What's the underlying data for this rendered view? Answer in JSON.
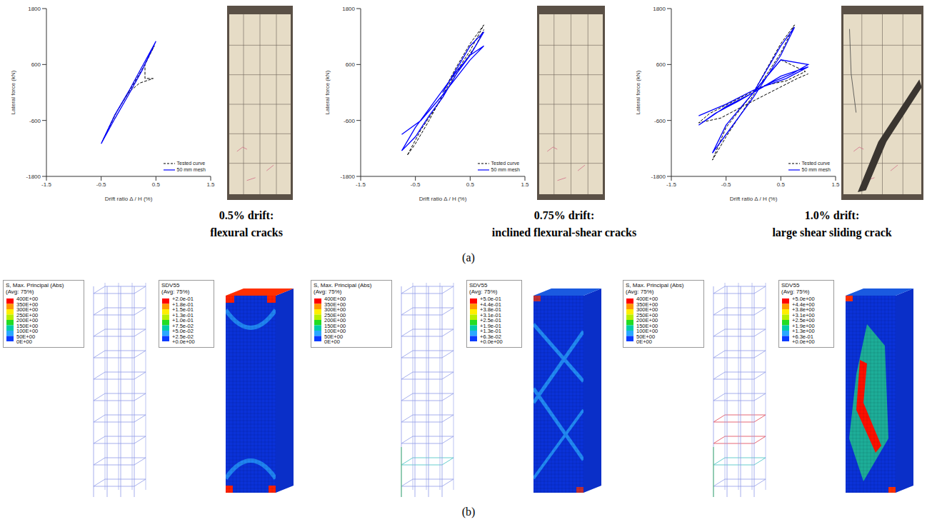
{
  "chart_data": [
    {
      "type": "line",
      "x_label": "Drift ratio Δ / H (%)",
      "y_label": "Lateral force (kN)",
      "xlim": [
        -1.5,
        1.5
      ],
      "xticks": [
        -1.5,
        -0.5,
        0.5,
        1.5
      ],
      "ylim": [
        -1800,
        1800
      ],
      "yticks": [
        -1800,
        -600,
        600,
        1800
      ],
      "legend": "lower right",
      "series": [
        {
          "name": "Tested curve",
          "color": "#000000",
          "line_style": "dashed",
          "x": [
            0,
            0.25,
            0.47,
            0.3,
            0.3,
            0.45,
            0.2,
            0,
            -0.25,
            -0.48,
            -0.2,
            0
          ],
          "values": [
            0,
            500,
            1000,
            600,
            300,
            300,
            200,
            0,
            -480,
            -1050,
            -380,
            0
          ]
        },
        {
          "name": "50 mm mesh",
          "color": "#0000ff",
          "line_style": "solid",
          "x": [
            0,
            0.25,
            0.5,
            0.25,
            0,
            -0.25,
            -0.5,
            -0.25,
            0
          ],
          "values": [
            20,
            560,
            1100,
            480,
            -50,
            -560,
            -1100,
            -480,
            20
          ]
        }
      ]
    },
    {
      "type": "line",
      "x_label": "Drift ratio Δ / H (%)",
      "y_label": "Lateral force (kN)",
      "xlim": [
        -1.5,
        1.5
      ],
      "xticks": [
        -1.5,
        -0.5,
        0.5,
        1.5
      ],
      "ylim": [
        -1800,
        1800
      ],
      "yticks": [
        -1800,
        -600,
        600,
        1800
      ],
      "legend": "lower right",
      "series": [
        {
          "name": "Tested curve",
          "color": "#000000",
          "line_style": "dashed",
          "x": [
            0,
            0.25,
            0.5,
            0.75,
            0.5,
            0.25,
            0,
            -0.25,
            -0.5,
            -0.65,
            -0.4,
            0,
            0.3,
            0.6,
            0.75
          ],
          "values": [
            0,
            550,
            1050,
            1450,
            900,
            450,
            -50,
            -600,
            -1100,
            -1350,
            -800,
            -100,
            500,
            1000,
            1350
          ]
        },
        {
          "name": "50 mm mesh",
          "color": "#0000ff",
          "line_style": "solid",
          "x": [
            0,
            0.25,
            0.5,
            0.75,
            0.5,
            0.25,
            0,
            -0.25,
            -0.5,
            -0.75,
            -0.5,
            -0.25,
            0,
            0.25,
            0.5,
            0.75,
            0.5,
            0,
            -0.4,
            -0.75
          ],
          "values": [
            0,
            500,
            1000,
            1300,
            800,
            400,
            -100,
            -500,
            -950,
            -1250,
            -750,
            -350,
            50,
            450,
            800,
            1000,
            700,
            -50,
            -600,
            -900
          ]
        }
      ]
    },
    {
      "type": "line",
      "x_label": "Drift ratio Δ / H (%)",
      "y_label": "Lateral force (kN)",
      "xlim": [
        -1.5,
        1.5
      ],
      "xticks": [
        -1.5,
        -0.5,
        0.5,
        1.5
      ],
      "ylim": [
        -1800,
        1800
      ],
      "yticks": [
        -1800,
        -600,
        600,
        1800
      ],
      "legend": "lower right",
      "series": [
        {
          "name": "Tested curve",
          "color": "#000000",
          "line_style": "dashed",
          "x": [
            0,
            0.5,
            0.75,
            0.5,
            0,
            -0.5,
            -0.75,
            -0.5,
            0,
            0.5,
            0.95,
            0.6,
            0.2,
            -0.3,
            -0.8,
            -1.0,
            -0.6,
            -0.2,
            0.3,
            0.8,
            1.0
          ],
          "values": [
            0,
            1050,
            1450,
            850,
            -50,
            -950,
            -1450,
            -750,
            0,
            700,
            450,
            250,
            150,
            -150,
            -450,
            -650,
            -550,
            -300,
            0,
            300,
            400
          ]
        },
        {
          "name": "50 mm mesh",
          "color": "#0000ff",
          "line_style": "solid",
          "x": [
            0,
            0.5,
            0.75,
            0.5,
            0,
            -0.5,
            -0.75,
            -0.5,
            0,
            0.5,
            1.0,
            0.7,
            0.3,
            0,
            -0.5,
            -1.0,
            -0.7,
            -0.3,
            0,
            0.5,
            1.0,
            0.6,
            0,
            -0.5,
            -1.0
          ],
          "values": [
            0,
            1000,
            1400,
            800,
            -100,
            -900,
            -1300,
            -700,
            0,
            700,
            600,
            400,
            200,
            0,
            -300,
            -700,
            -450,
            -200,
            0,
            350,
            550,
            300,
            50,
            -250,
            -500
          ]
        }
      ]
    }
  ],
  "captions": [
    {
      "drift": "0.5% drift:",
      "description": "flexural cracks"
    },
    {
      "drift": "0.75% drift:",
      "description": "inclined flexural-shear cracks"
    },
    {
      "drift": "1.0% drift:",
      "description": "large shear sliding crack"
    }
  ],
  "panel_labels": [
    "(a)",
    "(b)"
  ],
  "fe_panels": [
    {
      "s_legend": {
        "title": "S, Max. Principal (Abs)",
        "subtitle": "(Avg: 75%)",
        "labels": [
          "400E+00",
          "350E+00",
          "300E+00",
          "250E+00",
          "200E+00",
          "150E+00",
          "100E+00",
          "50E+00",
          "0E+00"
        ]
      },
      "sdv_legend": {
        "title": "SDV55",
        "subtitle": "(Avg: 75%)",
        "labels": [
          "+2.0e-01",
          "+1.8e-01",
          "+1.5e-01",
          "+1.3e-01",
          "+1.0e-01",
          "+7.5e-02",
          "+5.0e-02",
          "+2.5e-02",
          "+0.0e+00"
        ]
      }
    },
    {
      "s_legend": {
        "title": "S, Max. Principal (Abs)",
        "subtitle": "(Avg: 75%)",
        "labels": [
          "400E+00",
          "350E+00",
          "300E+00",
          "250E+00",
          "200E+00",
          "150E+00",
          "100E+00",
          "50E+00",
          "0E+00"
        ]
      },
      "sdv_legend": {
        "title": "SDV55",
        "subtitle": "(Avg: 75%)",
        "labels": [
          "+5.0e-01",
          "+4.4e-01",
          "+3.8e-01",
          "+3.1e-01",
          "+2.5e-01",
          "+1.9e-01",
          "+1.3e-01",
          "+6.3e-02",
          "+0.0e+00"
        ]
      }
    },
    {
      "s_legend": {
        "title": "S, Max. Principal (Abs)",
        "subtitle": "(Avg: 75%)",
        "labels": [
          "400E+00",
          "350E+00",
          "300E+00",
          "250E+00",
          "200E+00",
          "150E+00",
          "100E+00",
          "50E+00",
          "0E+00"
        ]
      },
      "sdv_legend": {
        "title": "SDV55",
        "subtitle": "(Avg: 75%)",
        "labels": [
          "+5.0e+00",
          "+4.4e+00",
          "+3.8e+00",
          "+3.1e+00",
          "+2.5e+00",
          "+1.9e+00",
          "+1.3e+00",
          "+6.3e-01",
          "+0.0e+00"
        ]
      }
    }
  ],
  "legend_colors": [
    "#ff0000",
    "#ff9900",
    "#ffee00",
    "#b8f000",
    "#22dd22",
    "#00ccaa",
    "#2aa8ff",
    "#0a3cff"
  ]
}
